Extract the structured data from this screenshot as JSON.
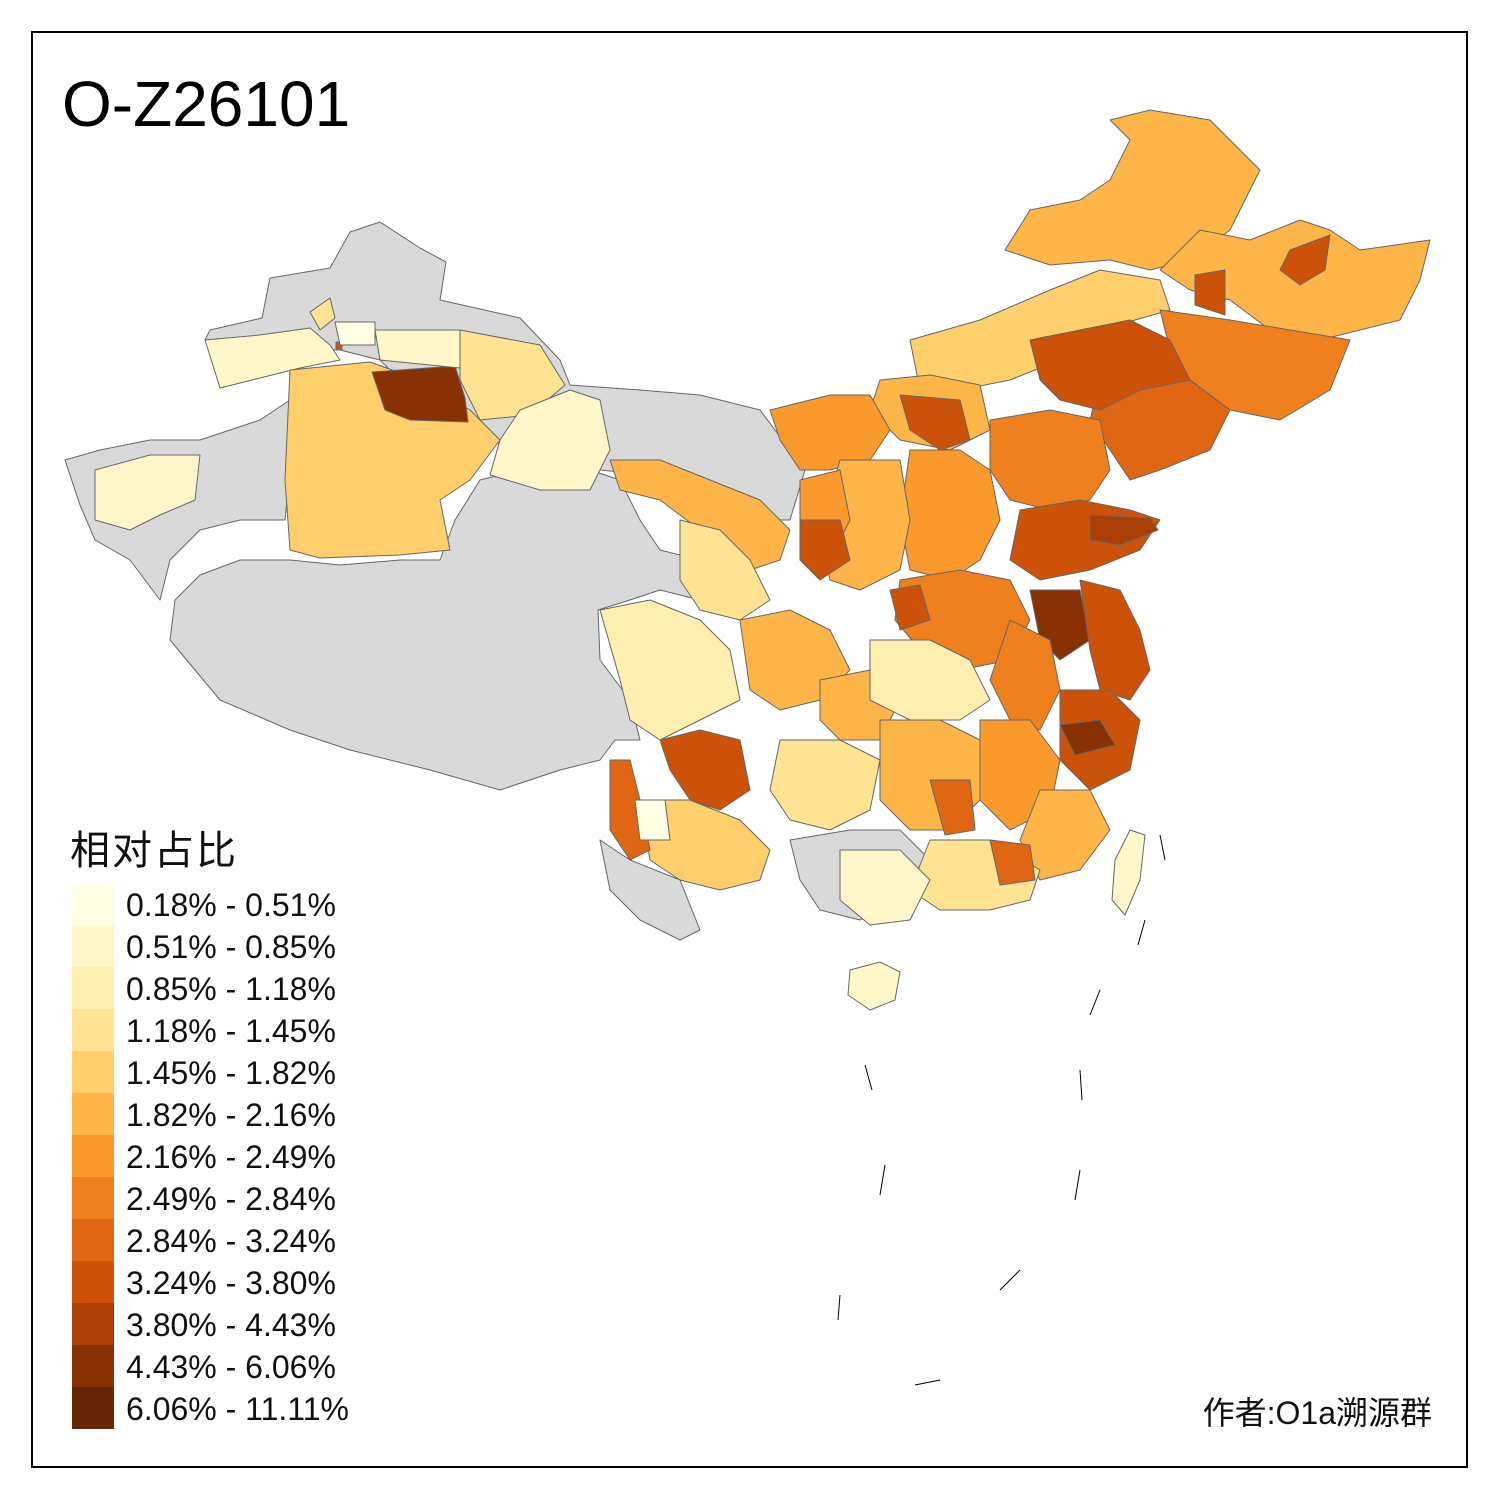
{
  "title": "O-Z26101",
  "legend": {
    "title": "相对占比",
    "items": [
      {
        "label": "0.18% - 0.51%",
        "color": "#FFFFE5"
      },
      {
        "label": "0.51% - 0.85%",
        "color": "#FFF7C9"
      },
      {
        "label": "0.85% - 1.18%",
        "color": "#FEEEB0"
      },
      {
        "label": "1.18% - 1.45%",
        "color": "#FEE393"
      },
      {
        "label": "1.45% - 1.82%",
        "color": "#FECF6A"
      },
      {
        "label": "1.82% - 2.16%",
        "color": "#FDB548"
      },
      {
        "label": "2.16% - 2.49%",
        "color": "#FB9A2C"
      },
      {
        "label": "2.49% - 2.84%",
        "color": "#F0801E"
      },
      {
        "label": "2.84% - 3.24%",
        "color": "#E06614"
      },
      {
        "label": "3.24% - 3.80%",
        "color": "#CB5208"
      },
      {
        "label": "3.80% - 4.43%",
        "color": "#AA3E03"
      },
      {
        "label": "4.43% - 6.06%",
        "color": "#883104"
      },
      {
        "label": "6.06% - 11.11%",
        "color": "#662506"
      }
    ]
  },
  "no_data_color": "#D9D9D9",
  "author": "作者:O1a溯源群"
}
